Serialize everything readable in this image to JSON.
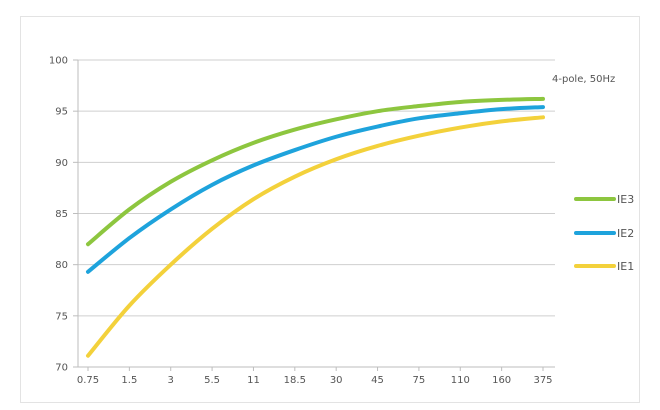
{
  "chart_data": {
    "type": "line",
    "annotation": "4-pole, 50Hz",
    "categories": [
      "0.75",
      "1.5",
      "3",
      "5.5",
      "11",
      "18.5",
      "30",
      "45",
      "75",
      "110",
      "160",
      "375"
    ],
    "yticks": [
      "100",
      "95",
      "90",
      "85",
      "80",
      "75",
      "70"
    ],
    "ylim": [
      70,
      100
    ],
    "grid": "horizontal",
    "legend_position": "right",
    "series": [
      {
        "name": "IE3",
        "color": "#8dc63f",
        "values": [
          82.0,
          85.4,
          88.1,
          90.2,
          91.9,
          93.2,
          94.2,
          95.0,
          95.5,
          95.9,
          96.1,
          96.2
        ]
      },
      {
        "name": "IE2",
        "color": "#1ea3dc",
        "values": [
          79.3,
          82.6,
          85.4,
          87.8,
          89.7,
          91.2,
          92.5,
          93.5,
          94.3,
          94.8,
          95.2,
          95.4
        ]
      },
      {
        "name": "IE1",
        "color": "#f3d13b",
        "values": [
          71.1,
          76.0,
          80.0,
          83.5,
          86.4,
          88.6,
          90.3,
          91.6,
          92.6,
          93.4,
          94.0,
          94.4
        ]
      }
    ]
  }
}
